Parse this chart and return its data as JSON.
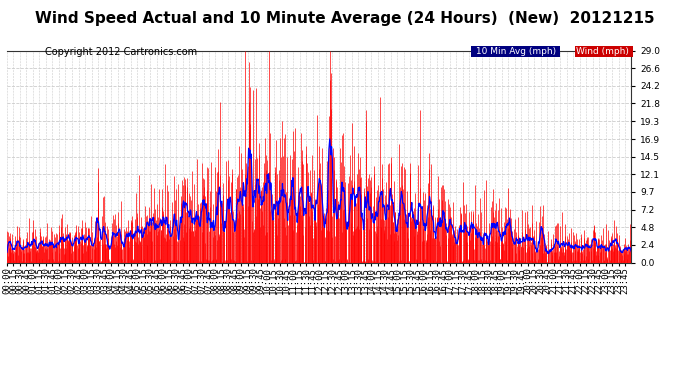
{
  "title": "Wind Speed Actual and 10 Minute Average (24 Hours)  (New)  20121215",
  "copyright": "Copyright 2012 Cartronics.com",
  "legend_label_avg": "10 Min Avg (mph)",
  "legend_label_wind": "Wind (mph)",
  "legend_bg_avg": "#000080",
  "legend_bg_wind": "#cc0000",
  "yticks": [
    0.0,
    2.4,
    4.8,
    7.2,
    9.7,
    12.1,
    14.5,
    16.9,
    19.3,
    21.8,
    24.2,
    26.6,
    29.0
  ],
  "ymax": 29.0,
  "ymin": 0.0,
  "bg_color": "#ffffff",
  "plot_bg_color": "#ffffff",
  "grid_color": "#cccccc",
  "wind_color": "#ff0000",
  "avg_color": "#0000ff",
  "title_fontsize": 11,
  "copyright_fontsize": 7,
  "tick_fontsize": 6.5
}
